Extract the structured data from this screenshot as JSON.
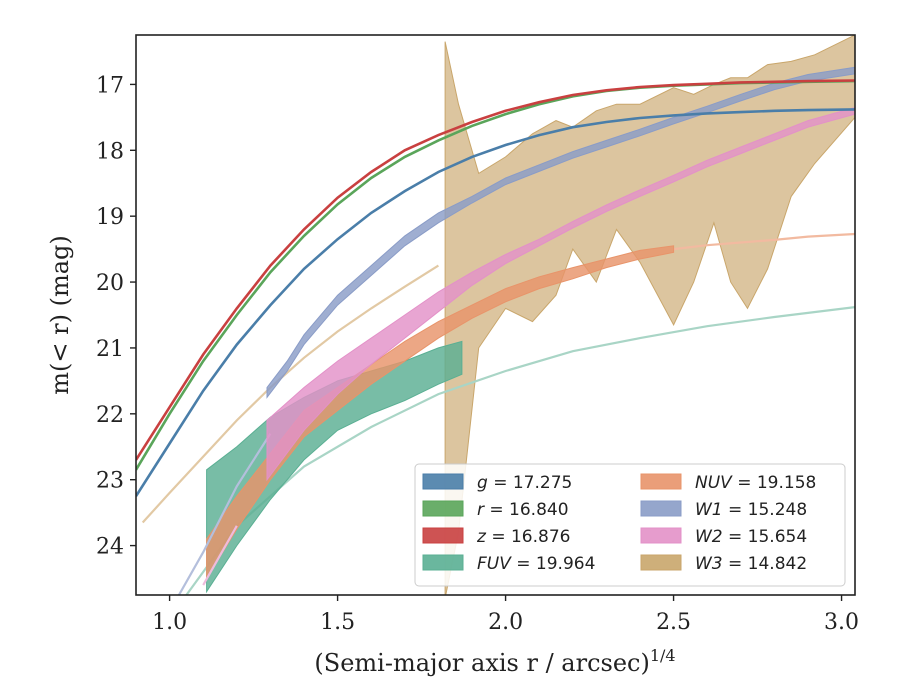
{
  "chart_data": {
    "type": "line",
    "xlabel": "(Semi-major axis r / arcsec)",
    "xlabel_sup": "1/4",
    "ylabel": "m(< r) (mag)",
    "xlim": [
      0.9,
      3.04
    ],
    "ylim": [
      24.75,
      16.25
    ],
    "y_inverted": true,
    "grid": false,
    "legend_position": "lower-right",
    "x_ticks": [
      {
        "value": 1.0,
        "label": "1.0"
      },
      {
        "value": 1.5,
        "label": "1.5"
      },
      {
        "value": 2.0,
        "label": "2.0"
      },
      {
        "value": 2.5,
        "label": "2.5"
      },
      {
        "value": 3.0,
        "label": "3.0"
      }
    ],
    "y_ticks": [
      {
        "value": 17,
        "label": "17"
      },
      {
        "value": 18,
        "label": "18"
      },
      {
        "value": 19,
        "label": "19"
      },
      {
        "value": 20,
        "label": "20"
      },
      {
        "value": 21,
        "label": "21"
      },
      {
        "value": 22,
        "label": "22"
      },
      {
        "value": 23,
        "label": "23"
      },
      {
        "value": 24,
        "label": "24"
      }
    ],
    "series": [
      {
        "id": "w3",
        "name": "W3 = 14.842",
        "color": "#c9a66b",
        "ext_color": "#e2c9a4",
        "extrap": [
          [
            0.92,
            23.65
          ],
          [
            1.0,
            23.2
          ],
          [
            1.1,
            22.65
          ],
          [
            1.2,
            22.1
          ],
          [
            1.3,
            21.6
          ],
          [
            1.4,
            21.15
          ],
          [
            1.5,
            20.75
          ],
          [
            1.6,
            20.4
          ],
          [
            1.7,
            20.07
          ],
          [
            1.8,
            19.75
          ]
        ],
        "band": [
          [
            1.82,
            24.8,
            16.35
          ],
          [
            1.86,
            23.8,
            17.3
          ],
          [
            1.92,
            21.0,
            18.35
          ],
          [
            2.0,
            20.4,
            18.1
          ],
          [
            2.08,
            20.6,
            17.75
          ],
          [
            2.15,
            20.2,
            17.55
          ],
          [
            2.2,
            19.5,
            17.65
          ],
          [
            2.27,
            20.0,
            17.4
          ],
          [
            2.33,
            19.2,
            17.3
          ],
          [
            2.4,
            19.7,
            17.3
          ],
          [
            2.5,
            20.65,
            17.05
          ],
          [
            2.56,
            20.0,
            17.15
          ],
          [
            2.62,
            19.1,
            17.0
          ],
          [
            2.67,
            20.0,
            16.9
          ],
          [
            2.72,
            20.4,
            16.9
          ],
          [
            2.78,
            19.8,
            16.7
          ],
          [
            2.85,
            18.7,
            16.65
          ],
          [
            2.92,
            18.2,
            16.55
          ],
          [
            3.04,
            17.5,
            16.25
          ]
        ]
      },
      {
        "id": "fuv",
        "name": "FUV = 19.964",
        "color": "#5aaf93",
        "ext_color": "#a9d5c6",
        "extrap": [
          [
            1.05,
            24.75
          ],
          [
            1.2,
            23.7
          ],
          [
            1.4,
            22.8
          ],
          [
            1.6,
            22.2
          ],
          [
            1.8,
            21.7
          ],
          [
            2.0,
            21.35
          ],
          [
            2.2,
            21.05
          ],
          [
            2.4,
            20.85
          ],
          [
            2.6,
            20.67
          ],
          [
            2.8,
            20.53
          ],
          [
            3.04,
            20.38
          ]
        ],
        "band": [
          [
            1.11,
            24.7,
            22.85
          ],
          [
            1.2,
            24.0,
            22.5
          ],
          [
            1.3,
            23.3,
            22.05
          ],
          [
            1.4,
            22.7,
            21.75
          ],
          [
            1.5,
            22.25,
            21.5
          ],
          [
            1.6,
            22.0,
            21.35
          ],
          [
            1.7,
            21.8,
            21.2
          ],
          [
            1.8,
            21.55,
            21.0
          ],
          [
            1.87,
            21.4,
            20.9
          ]
        ]
      },
      {
        "id": "nuv",
        "name": "NUV = 19.158",
        "color": "#e8946a",
        "ext_color": "#f2baa0",
        "extrap": [
          [
            2.5,
            19.5
          ],
          [
            2.6,
            19.44
          ],
          [
            2.7,
            19.4
          ],
          [
            2.8,
            19.36
          ],
          [
            2.9,
            19.31
          ],
          [
            3.04,
            19.27
          ]
        ],
        "band": [
          [
            1.11,
            24.5,
            23.9
          ],
          [
            1.2,
            23.75,
            23.25
          ],
          [
            1.3,
            23.0,
            22.6
          ],
          [
            1.4,
            22.35,
            21.95
          ],
          [
            1.5,
            21.95,
            21.6
          ],
          [
            1.6,
            21.55,
            21.25
          ],
          [
            1.7,
            21.2,
            20.9
          ],
          [
            1.8,
            20.85,
            20.6
          ],
          [
            1.9,
            20.55,
            20.35
          ],
          [
            2.0,
            20.3,
            20.1
          ],
          [
            2.1,
            20.1,
            19.92
          ],
          [
            2.2,
            19.95,
            19.78
          ],
          [
            2.3,
            19.78,
            19.65
          ],
          [
            2.4,
            19.65,
            19.52
          ],
          [
            2.5,
            19.55,
            19.45
          ]
        ]
      },
      {
        "id": "w1",
        "name": "W1 = 15.248",
        "color": "#8a9cc7",
        "ext_color": "#b4bfdc",
        "extrap": [
          [
            1.0,
            25.0
          ],
          [
            1.1,
            24.1
          ],
          [
            1.2,
            23.1
          ],
          [
            1.3,
            22.3
          ]
        ],
        "band": [
          [
            1.29,
            21.75,
            21.6
          ],
          [
            1.35,
            21.35,
            21.2
          ],
          [
            1.4,
            20.95,
            20.8
          ],
          [
            1.5,
            20.35,
            20.2
          ],
          [
            1.6,
            19.9,
            19.75
          ],
          [
            1.7,
            19.45,
            19.3
          ],
          [
            1.8,
            19.1,
            18.95
          ],
          [
            1.9,
            18.8,
            18.7
          ],
          [
            2.0,
            18.52,
            18.42
          ],
          [
            2.1,
            18.32,
            18.22
          ],
          [
            2.2,
            18.12,
            18.02
          ],
          [
            2.3,
            17.95,
            17.85
          ],
          [
            2.4,
            17.78,
            17.68
          ],
          [
            2.5,
            17.6,
            17.5
          ],
          [
            2.6,
            17.43,
            17.33
          ],
          [
            2.7,
            17.25,
            17.15
          ],
          [
            2.8,
            17.08,
            16.98
          ],
          [
            2.9,
            16.95,
            16.85
          ],
          [
            3.04,
            16.84,
            16.74
          ]
        ]
      },
      {
        "id": "w2",
        "name": "W2 = 15.654",
        "color": "#e391c8",
        "ext_color": "#efbbdc",
        "extrap": [
          [
            1.1,
            24.6
          ],
          [
            1.2,
            23.7
          ]
        ],
        "band": [
          [
            1.29,
            23.0,
            22.1
          ],
          [
            1.4,
            22.25,
            21.6
          ],
          [
            1.5,
            21.7,
            21.2
          ],
          [
            1.6,
            21.25,
            20.85
          ],
          [
            1.7,
            20.85,
            20.5
          ],
          [
            1.8,
            20.45,
            20.15
          ],
          [
            1.9,
            20.05,
            19.85
          ],
          [
            2.0,
            19.72,
            19.58
          ],
          [
            2.1,
            19.45,
            19.35
          ],
          [
            2.2,
            19.18,
            19.08
          ],
          [
            2.3,
            18.93,
            18.83
          ],
          [
            2.4,
            18.7,
            18.6
          ],
          [
            2.5,
            18.48,
            18.38
          ],
          [
            2.6,
            18.25,
            18.15
          ],
          [
            2.7,
            18.05,
            17.95
          ],
          [
            2.8,
            17.85,
            17.75
          ],
          [
            2.9,
            17.65,
            17.55
          ],
          [
            3.04,
            17.45,
            17.35
          ]
        ]
      },
      {
        "id": "g",
        "name": "g = 17.275",
        "color": "#4a7ea9",
        "line": [
          [
            0.9,
            23.25
          ],
          [
            1.0,
            22.45
          ],
          [
            1.1,
            21.65
          ],
          [
            1.2,
            20.95
          ],
          [
            1.3,
            20.35
          ],
          [
            1.4,
            19.8
          ],
          [
            1.5,
            19.35
          ],
          [
            1.6,
            18.95
          ],
          [
            1.7,
            18.62
          ],
          [
            1.8,
            18.33
          ],
          [
            1.9,
            18.1
          ],
          [
            2.0,
            17.92
          ],
          [
            2.1,
            17.77
          ],
          [
            2.2,
            17.65
          ],
          [
            2.3,
            17.57
          ],
          [
            2.4,
            17.51
          ],
          [
            2.5,
            17.47
          ],
          [
            2.6,
            17.44
          ],
          [
            2.7,
            17.42
          ],
          [
            2.8,
            17.4
          ],
          [
            2.9,
            17.39
          ],
          [
            3.04,
            17.38
          ]
        ]
      },
      {
        "id": "r",
        "name": "r = 16.840",
        "color": "#5aa55a",
        "line": [
          [
            0.9,
            22.85
          ],
          [
            1.0,
            22.0
          ],
          [
            1.1,
            21.2
          ],
          [
            1.2,
            20.5
          ],
          [
            1.3,
            19.85
          ],
          [
            1.4,
            19.3
          ],
          [
            1.5,
            18.82
          ],
          [
            1.6,
            18.42
          ],
          [
            1.7,
            18.1
          ],
          [
            1.8,
            17.85
          ],
          [
            1.9,
            17.63
          ],
          [
            2.0,
            17.45
          ],
          [
            2.1,
            17.3
          ],
          [
            2.2,
            17.18
          ],
          [
            2.3,
            17.1
          ],
          [
            2.4,
            17.05
          ],
          [
            2.5,
            17.02
          ],
          [
            2.6,
            17.0
          ],
          [
            2.7,
            16.98
          ],
          [
            2.8,
            16.97
          ],
          [
            2.9,
            16.96
          ],
          [
            3.04,
            16.95
          ]
        ]
      },
      {
        "id": "z",
        "name": "z = 16.876",
        "color": "#c94040",
        "line": [
          [
            0.9,
            22.7
          ],
          [
            1.0,
            21.9
          ],
          [
            1.1,
            21.1
          ],
          [
            1.2,
            20.4
          ],
          [
            1.3,
            19.75
          ],
          [
            1.4,
            19.2
          ],
          [
            1.5,
            18.72
          ],
          [
            1.6,
            18.33
          ],
          [
            1.7,
            18.0
          ],
          [
            1.8,
            17.77
          ],
          [
            1.9,
            17.57
          ],
          [
            2.0,
            17.4
          ],
          [
            2.1,
            17.27
          ],
          [
            2.2,
            17.16
          ],
          [
            2.3,
            17.09
          ],
          [
            2.4,
            17.04
          ],
          [
            2.5,
            17.01
          ],
          [
            2.6,
            16.99
          ],
          [
            2.7,
            16.97
          ],
          [
            2.8,
            16.96
          ],
          [
            2.9,
            16.95
          ],
          [
            3.04,
            16.94
          ]
        ]
      }
    ],
    "legend": {
      "columns": [
        [
          {
            "sym": "g",
            "rest": " = 17.275",
            "color": "#4a7ea9"
          },
          {
            "sym": "r",
            "rest": " = 16.840",
            "color": "#5aa55a"
          },
          {
            "sym": "z",
            "rest": " = 16.876",
            "color": "#c94040"
          },
          {
            "sym": "FUV",
            "rest": " = 19.964",
            "color": "#5aaf93"
          }
        ],
        [
          {
            "sym": "NUV",
            "rest": " = 19.158",
            "color": "#e8946a"
          },
          {
            "sym": "W1",
            "rest": " = 15.248",
            "color": "#8a9cc7"
          },
          {
            "sym": "W2",
            "rest": " = 15.654",
            "color": "#e391c8"
          },
          {
            "sym": "W3",
            "rest": " = 14.842",
            "color": "#c9a66b"
          }
        ]
      ]
    }
  }
}
